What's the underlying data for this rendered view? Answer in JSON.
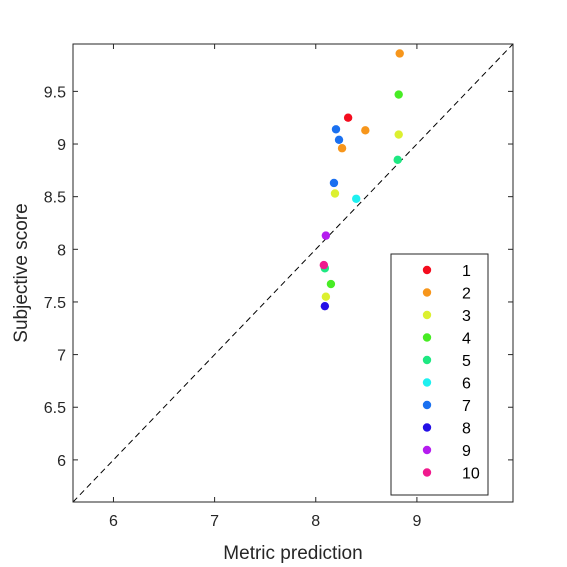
{
  "chart_data": {
    "type": "scatter",
    "title": "",
    "xlabel": "Metric prediction",
    "ylabel": "Subjective score",
    "xlim": [
      5.6,
      9.95
    ],
    "ylim": [
      5.6,
      9.95
    ],
    "xticks": [
      6,
      7,
      8,
      9
    ],
    "yticks": [
      6,
      6.5,
      7,
      7.5,
      8,
      8.5,
      9,
      9.5
    ],
    "xtick_labels": [
      "6",
      "7",
      "8",
      "9"
    ],
    "ytick_labels": [
      "6",
      "6.5",
      "7",
      "7.5",
      "8",
      "8.5",
      "9",
      "9.5"
    ],
    "grid": false,
    "reference_line": {
      "style": "dashed",
      "from": [
        5.6,
        5.6
      ],
      "to": [
        9.95,
        9.95
      ]
    },
    "legend_position": "bottom-right",
    "series": [
      {
        "name": "1",
        "color": "#f40c1e",
        "points": [
          [
            8.32,
            9.25
          ]
        ]
      },
      {
        "name": "2",
        "color": "#f7961b",
        "points": [
          [
            8.83,
            9.86
          ],
          [
            8.49,
            9.13
          ],
          [
            8.26,
            8.96
          ]
        ]
      },
      {
        "name": "3",
        "color": "#dcf030",
        "points": [
          [
            8.82,
            9.09
          ],
          [
            8.19,
            8.53
          ],
          [
            8.1,
            7.55
          ]
        ]
      },
      {
        "name": "4",
        "color": "#47ec24",
        "points": [
          [
            8.82,
            9.47
          ],
          [
            8.15,
            7.67
          ]
        ]
      },
      {
        "name": "5",
        "color": "#1ee882",
        "points": [
          [
            8.81,
            8.85
          ],
          [
            8.09,
            7.82
          ]
        ]
      },
      {
        "name": "6",
        "color": "#1ef0f0",
        "points": [
          [
            8.4,
            8.48
          ]
        ]
      },
      {
        "name": "7",
        "color": "#1a70f0",
        "points": [
          [
            8.2,
            9.14
          ],
          [
            8.23,
            9.04
          ],
          [
            8.18,
            8.63
          ]
        ]
      },
      {
        "name": "8",
        "color": "#2410e6",
        "points": [
          [
            8.09,
            7.46
          ]
        ]
      },
      {
        "name": "9",
        "color": "#b51cef",
        "points": [
          [
            8.1,
            8.13
          ]
        ]
      },
      {
        "name": "10",
        "color": "#f01a8e",
        "points": [
          [
            8.08,
            7.85
          ]
        ]
      }
    ]
  }
}
